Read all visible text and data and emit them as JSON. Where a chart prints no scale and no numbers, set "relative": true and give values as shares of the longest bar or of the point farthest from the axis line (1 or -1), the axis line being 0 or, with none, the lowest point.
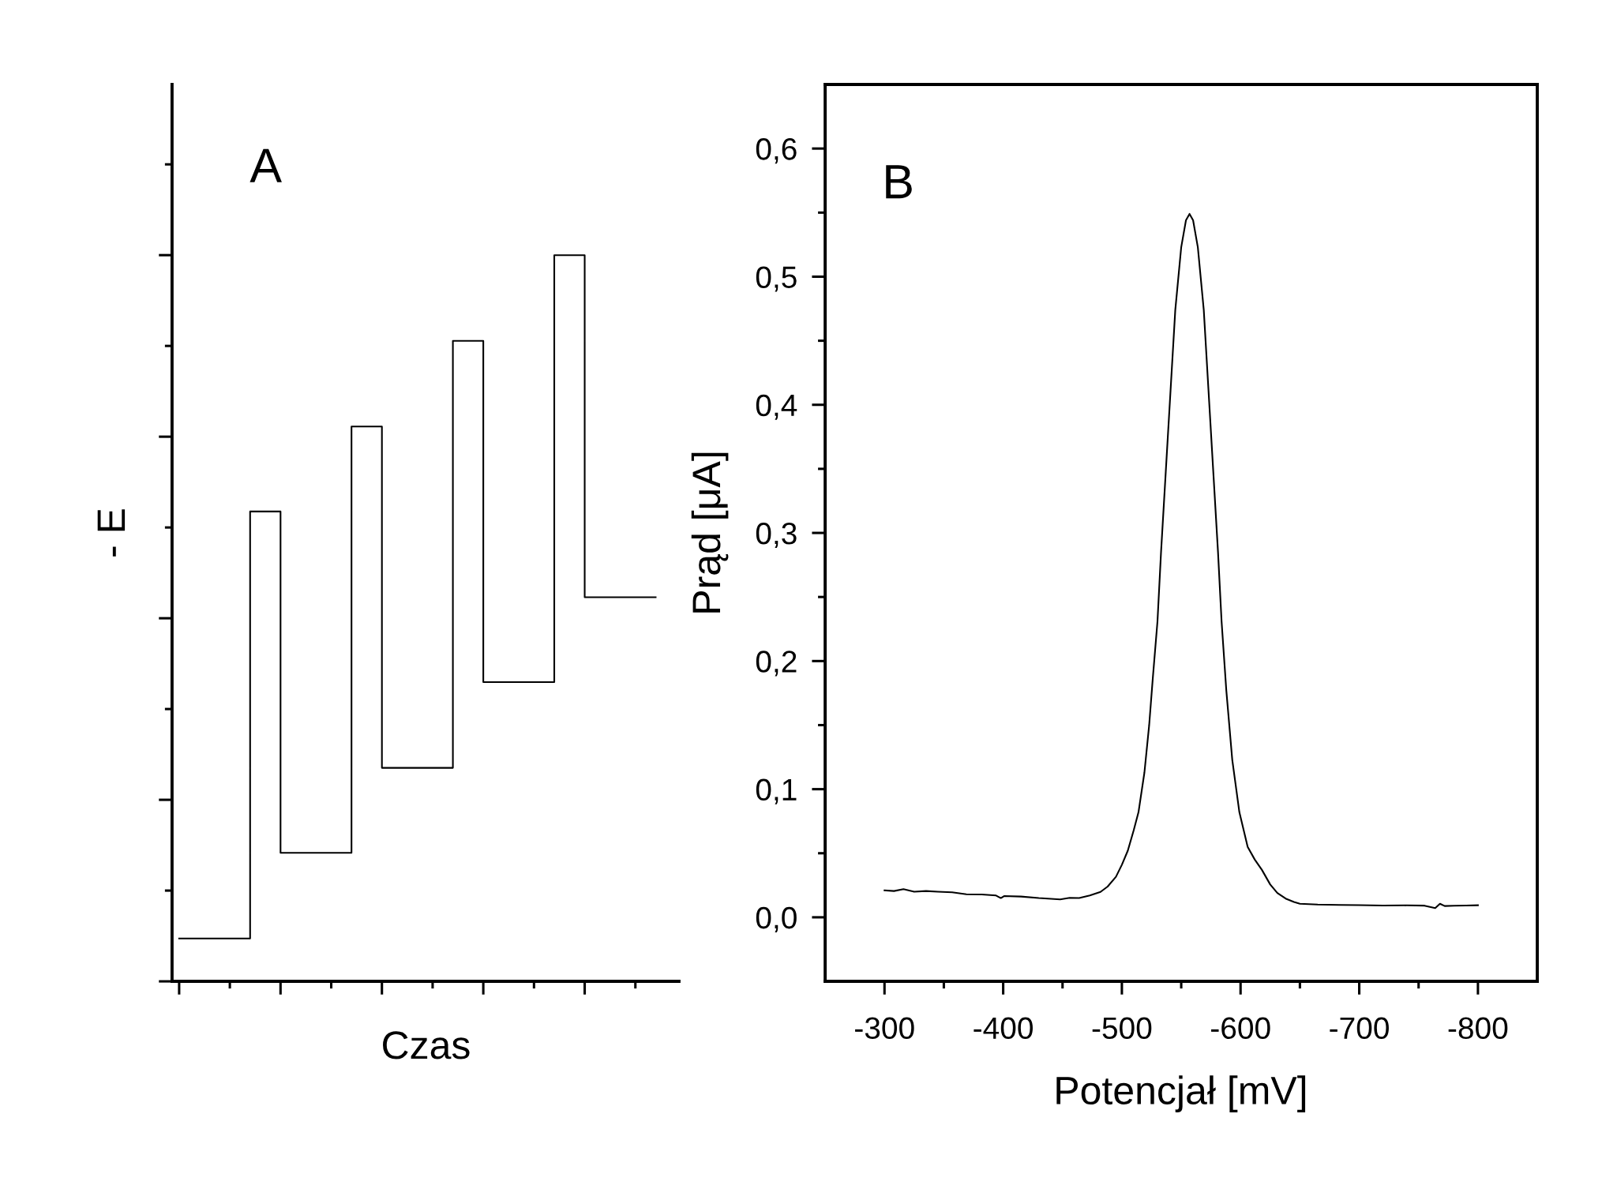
{
  "chart_data": [
    {
      "type": "step",
      "relative": true,
      "xlabel": "Czas",
      "ylabel": "- E",
      "annotations": [
        "A"
      ],
      "color": "#000000",
      "categories": [
        null,
        null,
        null,
        null,
        null,
        null,
        null,
        null,
        null,
        null,
        null,
        null,
        null,
        null,
        null,
        null,
        null,
        null,
        null,
        null,
        null,
        null,
        null,
        null,
        null,
        null,
        null,
        null,
        null,
        null,
        null,
        null,
        null,
        null,
        null,
        null,
        null,
        null,
        null,
        null,
        null,
        null,
        null,
        null,
        null,
        null,
        null,
        null
      ],
      "values": [
        0.059,
        0.059,
        0.059,
        0.059,
        0.059,
        0.059,
        0.059,
        0.647,
        0.647,
        0.647,
        0.177,
        0.177,
        0.177,
        0.177,
        0.177,
        0.177,
        0.177,
        0.764,
        0.764,
        0.764,
        0.294,
        0.294,
        0.294,
        0.294,
        0.294,
        0.294,
        0.294,
        0.882,
        0.882,
        0.882,
        0.412,
        0.412,
        0.412,
        0.412,
        0.412,
        0.412,
        0.412,
        1.0,
        1.0,
        1.0,
        0.529,
        0.529,
        0.529,
        0.529,
        0.529,
        0.529,
        0.529,
        0.529
      ]
    },
    {
      "type": "line",
      "xlabel": "Potencjał [mV]",
      "ylabel": "Prąd [μA]",
      "annotations": [
        "B"
      ],
      "color": "#000000",
      "xlim": [
        -250,
        -850
      ],
      "ylim": [
        -0.05,
        0.65
      ],
      "xticks": [
        -300,
        {
          "value": -350,
          "label": null
        },
        -400,
        {
          "value": -450,
          "label": null
        },
        -500,
        {
          "value": -550,
          "label": null
        },
        -600,
        {
          "value": -650,
          "label": null
        },
        -700,
        {
          "value": -750,
          "label": null
        },
        -800
      ],
      "yticks": [
        {
          "value": 0,
          "label": "0,0"
        },
        {
          "value": 0.05,
          "label": null
        },
        {
          "value": 0.1,
          "label": "0,1"
        },
        {
          "value": 0.15,
          "label": null
        },
        {
          "value": 0.2,
          "label": "0,2"
        },
        {
          "value": 0.25,
          "label": null
        },
        {
          "value": 0.3,
          "label": "0,3"
        },
        {
          "value": 0.35,
          "label": null
        },
        {
          "value": 0.4,
          "label": "0,4"
        },
        {
          "value": 0.45,
          "label": null
        },
        {
          "value": 0.5,
          "label": "0,5"
        },
        {
          "value": 0.55,
          "label": null
        },
        {
          "value": 0.6,
          "label": "0,6"
        }
      ],
      "x": [
        -300,
        -308,
        -316,
        -325,
        -335,
        -345,
        -357,
        -369,
        -382,
        -394,
        -398,
        -401,
        -415,
        -430,
        -448,
        -456,
        -464,
        -473,
        -482,
        -488,
        -495,
        -500,
        -505,
        -510,
        -514,
        -519,
        -523,
        -526,
        -530,
        -533,
        -537,
        -541,
        -545,
        -550,
        -554,
        -557,
        -560,
        -564,
        -569,
        -573,
        -577,
        -581,
        -584,
        -588,
        -593,
        -599,
        -606,
        -612,
        -618,
        -625,
        -631,
        -638,
        -645,
        -650,
        -665,
        -683,
        -700,
        -720,
        -740,
        -755,
        -764,
        -768,
        -772,
        -780,
        -790,
        -800
      ],
      "values": [
        0.021,
        0.0205,
        0.022,
        0.02,
        0.0205,
        0.02,
        0.0195,
        0.018,
        0.0178,
        0.017,
        0.015,
        0.0166,
        0.0162,
        0.015,
        0.014,
        0.0152,
        0.015,
        0.017,
        0.0198,
        0.024,
        0.0316,
        0.041,
        0.052,
        0.068,
        0.082,
        0.113,
        0.15,
        0.186,
        0.231,
        0.285,
        0.348,
        0.411,
        0.474,
        0.523,
        0.544,
        0.549,
        0.544,
        0.523,
        0.474,
        0.411,
        0.348,
        0.285,
        0.231,
        0.177,
        0.123,
        0.082,
        0.055,
        0.045,
        0.037,
        0.0256,
        0.019,
        0.0146,
        0.012,
        0.0106,
        0.01,
        0.0097,
        0.0095,
        0.0092,
        0.0093,
        0.0091,
        0.0072,
        0.0106,
        0.0088,
        0.009,
        0.0092,
        0.0094
      ]
    }
  ]
}
